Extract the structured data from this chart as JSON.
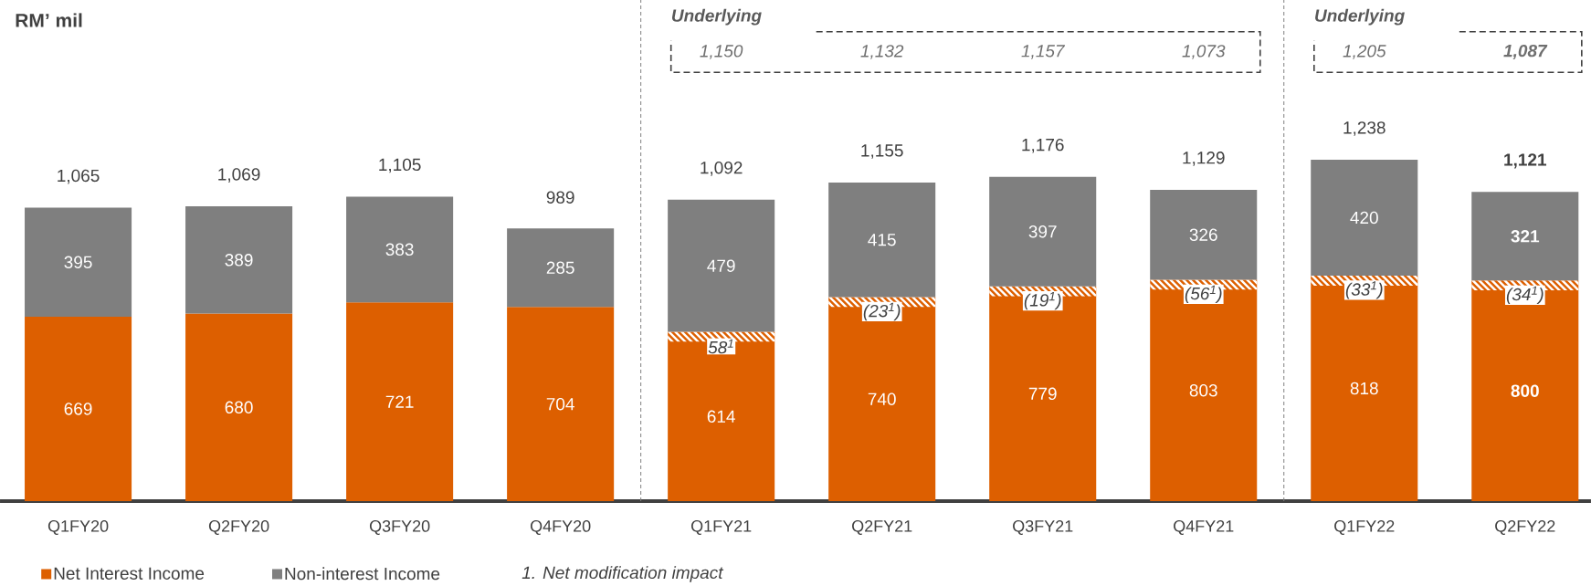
{
  "chart_data": {
    "type": "bar",
    "stacked": true,
    "categories": [
      "Q1FY20",
      "Q2FY20",
      "Q3FY20",
      "Q4FY20",
      "Q1FY21",
      "Q2FY21",
      "Q3FY21",
      "Q4FY21",
      "Q1FY22",
      "Q2FY22"
    ],
    "series": [
      {
        "name": "Net Interest Income",
        "color": "#dd5f00",
        "values": [
          669,
          680,
          721,
          704,
          614,
          740,
          779,
          803,
          818,
          800
        ]
      },
      {
        "name": "Non-interest Income",
        "color": "#7f7f7f",
        "values": [
          395,
          389,
          383,
          285,
          479,
          415,
          397,
          326,
          420,
          321
        ]
      }
    ],
    "data_labels": true,
    "totals": [
      "1,065",
      "1,069",
      "1,105",
      "989",
      "1,092",
      "1,155",
      "1,176",
      "1,129",
      "1,238",
      "1,121"
    ],
    "annotations": [
      "RM’ mil",
      "Underlying",
      "1,150",
      "1,132",
      "1,157",
      "1,073",
      "Underlying",
      "1,205",
      "1,087",
      "58$^{1}$",
      "(23$^{1}$)",
      "(19$^{1}$)",
      "(56$^{1}$)",
      "(33$^{1}$)",
      "(34$^{1}$)",
      "1. Net modification impact"
    ],
    "legend": "bottom left"
  }
}
